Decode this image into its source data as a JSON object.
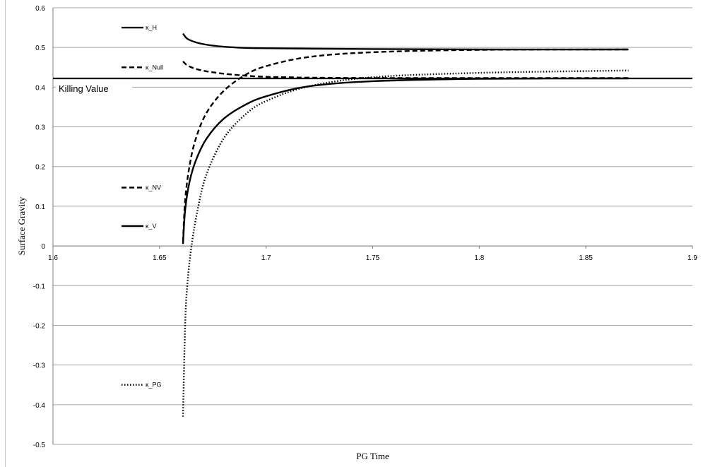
{
  "chart_data": {
    "type": "line",
    "title": "",
    "xlabel": "PG Time",
    "ylabel": "Surface Gravity",
    "xlim": [
      1.6,
      1.9
    ],
    "ylim": [
      -0.5,
      0.6
    ],
    "x_ticks": [
      "1.6",
      "1.65",
      "1.7",
      "1.75",
      "1.8",
      "1.85",
      "1.9"
    ],
    "y_ticks": [
      "0.6",
      "0.5",
      "0.4",
      "0.3",
      "0.2",
      "0.1",
      "0",
      "-0.1",
      "-0.2",
      "-0.3",
      "-0.4",
      "-0.5"
    ],
    "grid": "horizontal",
    "legend": "inside-left",
    "reference_line": {
      "label": "Killing Value",
      "y": 0.422
    },
    "series": [
      {
        "name": "κ_H",
        "style": "solid",
        "legend_y": 0.55,
        "x": [
          1.661,
          1.663,
          1.667,
          1.672,
          1.68,
          1.69,
          1.7,
          1.72,
          1.75,
          1.8,
          1.87
        ],
        "y": [
          0.535,
          0.522,
          0.513,
          0.507,
          0.502,
          0.499,
          0.498,
          0.497,
          0.496,
          0.495,
          0.495
        ]
      },
      {
        "name": "κ_Null",
        "style": "dashed",
        "legend_y": 0.45,
        "x": [
          1.661,
          1.663,
          1.667,
          1.672,
          1.68,
          1.69,
          1.7,
          1.71,
          1.72,
          1.75,
          1.8,
          1.87
        ],
        "y": [
          0.465,
          0.455,
          0.446,
          0.44,
          0.434,
          0.429,
          0.426,
          0.425,
          0.424,
          0.423,
          0.423,
          0.423
        ]
      },
      {
        "name": "κ_NV",
        "style": "dashed",
        "legend_y": 0.147,
        "x": [
          1.661,
          1.662,
          1.664,
          1.667,
          1.672,
          1.68,
          1.69,
          1.7,
          1.72,
          1.75,
          1.8,
          1.87
        ],
        "y": [
          0.01,
          0.115,
          0.2,
          0.27,
          0.335,
          0.39,
          0.43,
          0.453,
          0.476,
          0.488,
          0.494,
          0.495
        ]
      },
      {
        "name": "κ_V",
        "style": "solid",
        "legend_y": 0.05,
        "x": [
          1.661,
          1.662,
          1.664,
          1.667,
          1.672,
          1.68,
          1.69,
          1.7,
          1.72,
          1.75,
          1.8,
          1.87
        ],
        "y": [
          0.005,
          0.09,
          0.16,
          0.215,
          0.27,
          0.32,
          0.355,
          0.377,
          0.402,
          0.415,
          0.421,
          0.422
        ]
      },
      {
        "name": "κ_PG",
        "style": "dotted",
        "legend_y": -0.35,
        "x": [
          1.661,
          1.662,
          1.663,
          1.665,
          1.668,
          1.672,
          1.68,
          1.69,
          1.7,
          1.72,
          1.75,
          1.8,
          1.87
        ],
        "y": [
          -0.43,
          -0.2,
          -0.1,
          0.0,
          0.095,
          0.18,
          0.27,
          0.33,
          0.365,
          0.402,
          0.425,
          0.436,
          0.442
        ]
      }
    ]
  }
}
